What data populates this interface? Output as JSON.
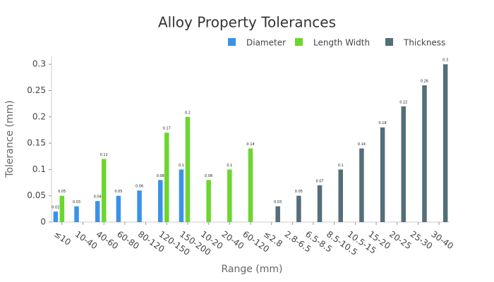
{
  "chart_data": {
    "type": "bar",
    "title": "Alloy Property Tolerances",
    "x_label": "Range (mm)",
    "y_label": "Tolerance (mm)",
    "categories": [
      "≤10",
      "10-40",
      "40-60",
      "60-80",
      "80-120",
      "120-150",
      "150-200",
      "10-20",
      "20-40",
      "60-120",
      "≤2.8",
      "2.8-6.5",
      "6.5-8.5",
      "8.5-10.5",
      "10.5-15",
      "15-20",
      "20-25",
      "25-30",
      "30-40"
    ],
    "series": [
      {
        "name": "Diameter",
        "color": "#3a92e8",
        "values": [
          0.02,
          0.03,
          0.04,
          0.05,
          0.06,
          0.08,
          0.1,
          null,
          null,
          null,
          null,
          null,
          null,
          null,
          null,
          null,
          null,
          null,
          null
        ]
      },
      {
        "name": "Length Width",
        "color": "#6cd630",
        "values": [
          0.05,
          null,
          0.12,
          null,
          null,
          0.17,
          0.2,
          0.08,
          0.1,
          0.14,
          null,
          null,
          null,
          null,
          null,
          null,
          null,
          null,
          null
        ]
      },
      {
        "name": "Thickness",
        "color": "#546e7a",
        "values": [
          null,
          null,
          null,
          null,
          null,
          null,
          null,
          null,
          null,
          null,
          0.03,
          0.05,
          0.07,
          0.1,
          0.14,
          0.18,
          0.22,
          0.26,
          0.3
        ]
      }
    ],
    "ylim": [
      0,
      0.315
    ],
    "yticks": [
      0,
      0.05,
      0.1,
      0.15,
      0.2,
      0.25,
      0.3
    ],
    "grid": false,
    "legend": "top-right",
    "data_labels": true
  }
}
